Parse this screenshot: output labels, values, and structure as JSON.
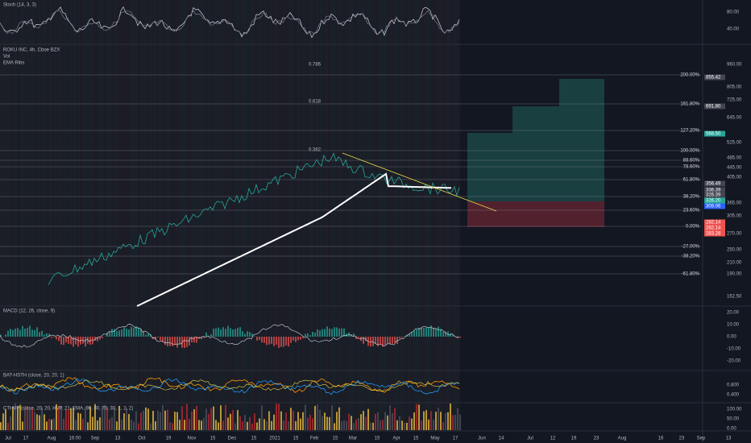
{
  "panes": {
    "stoch": {
      "label": "Stoch (14, 3, 3)",
      "ticks": [
        "80.00",
        "40.00"
      ]
    },
    "main": {
      "labels": [
        "ROKU INC, 4h, Cboe BZX",
        "Vol",
        "EMA Ribs"
      ],
      "ticks": [
        "960.00",
        "805.00",
        "725.00",
        "645.00",
        "525.00",
        "485.00",
        "445.00",
        "405.00",
        "365.00",
        "305.00",
        "270.00",
        "250.00",
        "210.00",
        "190.00",
        "162.50"
      ],
      "tags": [
        {
          "text": "855.42",
          "kind": "grey"
        },
        {
          "text": "691.80",
          "kind": "grey"
        },
        {
          "text": "568.50",
          "kind": "green"
        },
        {
          "text": "356.49",
          "kind": "grey"
        },
        {
          "text": "336.39",
          "kind": "grey"
        },
        {
          "text": "326.39",
          "kind": "grey"
        },
        {
          "text": "326.20",
          "kind": "green"
        },
        {
          "text": "309.06",
          "kind": "blue"
        },
        {
          "text": "282.14",
          "kind": "red"
        },
        {
          "text": "282.14",
          "kind": "red"
        },
        {
          "text": "283.28",
          "kind": "red"
        }
      ],
      "fib": [
        "200.00%",
        "161.80%",
        "127.20%",
        "100.00%",
        "88.60%",
        "78.60%",
        "61.80%",
        "38.20%",
        "23.60%",
        "0.00%",
        "-27.00%",
        "-38.20%",
        "-61.80%"
      ],
      "ratios": [
        "0.786",
        "0.618",
        "0.382"
      ]
    },
    "macd": {
      "label": "MACD (12, 26, close, 9)",
      "ticks": [
        "20.00",
        "10.00",
        "0.00",
        "-10.00",
        "-20.00"
      ]
    },
    "bat": {
      "label": "BAT-HSTH (close, 20, 20, 1)",
      "ticks": [
        "0.800",
        "0.400"
      ]
    },
    "cthvp": {
      "label": "CTHVP (close, 20, 20, HVP, 21, EMA, 90, 80, 70, 30, 1, 2, 2)",
      "ticks": [
        "100.00",
        "50.00",
        "0.00"
      ]
    }
  },
  "dates": [
    "Jul",
    "17",
    "Aug",
    "16:00",
    "Sep",
    "13",
    "Oct",
    "19",
    "Nov",
    "15",
    "Dec",
    "15",
    "2021",
    "15",
    "Feb",
    "15",
    "Mar",
    "15",
    "Apr",
    "15",
    "May",
    "17",
    "Jun",
    "14",
    "Jul",
    "12",
    "19",
    "23",
    "Aug",
    "16",
    "23",
    "Sep",
    "13"
  ]
}
